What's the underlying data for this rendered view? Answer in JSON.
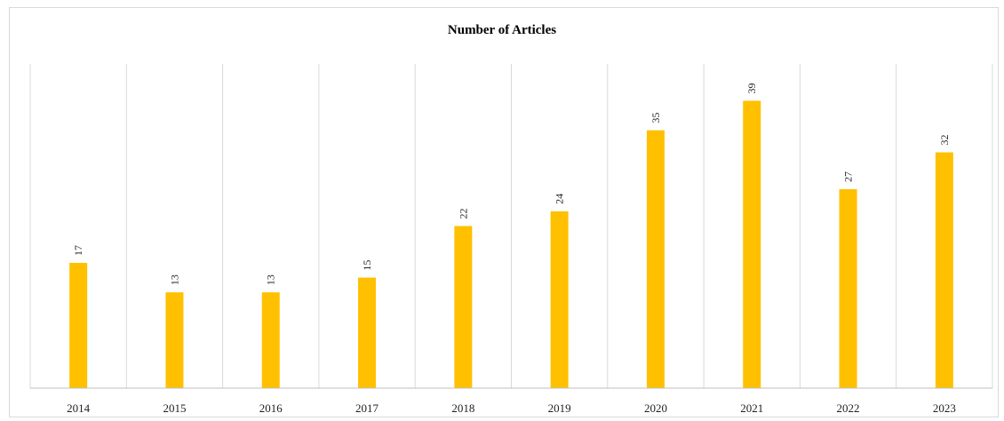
{
  "chart_data": {
    "type": "bar",
    "title": "Number of Articles",
    "categories": [
      "2014",
      "2015",
      "2016",
      "2017",
      "2018",
      "2019",
      "2020",
      "2021",
      "2022",
      "2023"
    ],
    "values": [
      17,
      13,
      13,
      15,
      22,
      24,
      35,
      39,
      27,
      32
    ],
    "xlabel": "",
    "ylabel": "",
    "ylim": [
      0,
      44
    ],
    "grid": "vertical separators",
    "bar_color": "#FFC000",
    "legend": "none"
  }
}
